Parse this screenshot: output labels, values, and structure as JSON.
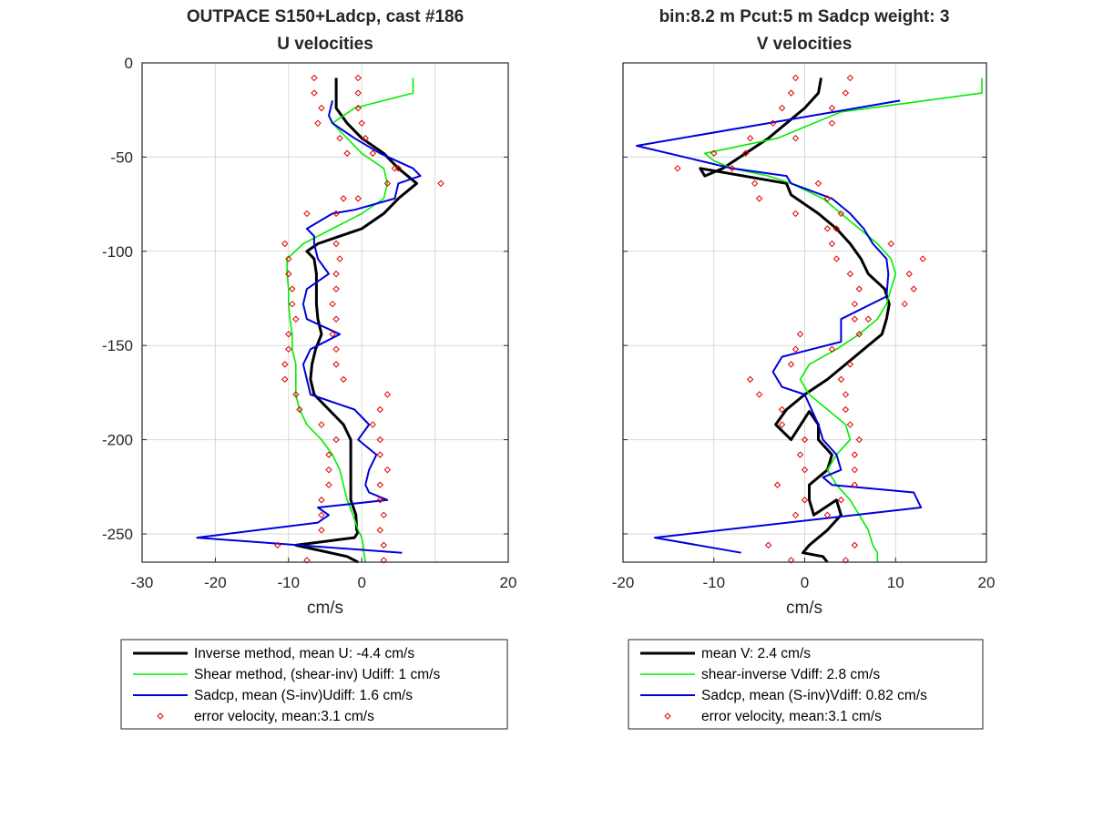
{
  "colors": {
    "inverse": "#000000",
    "shear": "#00ee00",
    "sadcp": "#0000dd",
    "error": "#dd0000",
    "grid": "#d9d9d9",
    "axis": "#262626"
  },
  "chart_data": [
    {
      "type": "line",
      "panel": "left",
      "title_line1": "OUTPACE S150+Ladcp, cast #186",
      "title_line2": "U velocities",
      "xlabel": "cm/s",
      "ylabel": "",
      "xlim": [
        -30,
        20
      ],
      "ylim": [
        -265,
        0
      ],
      "xticks": [
        -30,
        -20,
        -10,
        0,
        20
      ],
      "xticklabels": [
        "-30",
        "-20",
        "-10",
        "0",
        "20"
      ],
      "xgrid": [
        -30,
        -20,
        -10,
        0,
        10,
        20
      ],
      "yticks": [
        0,
        -50,
        -100,
        -150,
        -200,
        -250
      ],
      "yticklabels": [
        "0",
        "-50",
        "-100",
        "-150",
        "-200",
        "-250"
      ],
      "grid": true,
      "legend_position": "below",
      "series": [
        {
          "name": "Inverse method, mean U:  -4.4 cm/s",
          "key": "inverse",
          "style": "line",
          "x": [
            -3.5,
            -3.5,
            -3.5,
            -2,
            0,
            3,
            5,
            7.5,
            5,
            3,
            0,
            -3,
            -6,
            -7.5,
            -6.5,
            -6.2,
            -6.2,
            -6.2,
            -6.0,
            -5.5,
            -6.3,
            -6.8,
            -7.0,
            -6.5,
            -4.5,
            -2.5,
            -1.5,
            -1.5,
            -1.5,
            -1.5,
            -1.5,
            -0.8,
            -0.7,
            -0.5,
            -1.0,
            -9.0,
            -2.0,
            -0.5
          ],
          "y": [
            -8,
            -16,
            -24,
            -32,
            -40,
            -48,
            -56,
            -64,
            -72,
            -80,
            -88,
            -92,
            -96,
            -100,
            -104,
            -112,
            -120,
            -128,
            -136,
            -144,
            -152,
            -160,
            -168,
            -176,
            -184,
            -192,
            -200,
            -208,
            -216,
            -224,
            -232,
            -240,
            -248,
            -249,
            -252,
            -256,
            -262,
            -265
          ]
        },
        {
          "name": "Shear method, (shear-inv)  Udiff:  1 cm/s",
          "key": "shear",
          "style": "line",
          "x": [
            7.0,
            7.0,
            -1,
            -4,
            -2,
            0,
            3,
            3.5,
            3,
            0,
            -4,
            -8,
            -10.2,
            -10.2,
            -10.0,
            -10.0,
            -9.8,
            -9.5,
            -9.5,
            -9.0,
            -9.0,
            -9.0,
            -8.5,
            -7.5,
            -5.5,
            -4,
            -3,
            -2.5,
            -2,
            -1.2,
            -0.5,
            0,
            0.2,
            0.3,
            0.5
          ],
          "y": [
            -8,
            -16,
            -24,
            -32,
            -40,
            -48,
            -56,
            -64,
            -72,
            -80,
            -88,
            -96,
            -104,
            -112,
            -120,
            -128,
            -136,
            -144,
            -152,
            -160,
            -168,
            -176,
            -184,
            -192,
            -200,
            -208,
            -216,
            -224,
            -232,
            -240,
            -248,
            -252,
            -256,
            -260,
            -265
          ]
        },
        {
          "name": "Sadcp, mean (S-inv)Udiff: 1.6 cm/s",
          "key": "sadcp",
          "style": "line",
          "x": [
            -4,
            -4.5,
            -4,
            -1,
            2.5,
            7,
            8,
            5,
            4.5,
            -1,
            -4.0,
            -7.5,
            -6.5,
            -6.5,
            -6.0,
            -4.5,
            -7.5,
            -8.0,
            -7.5,
            -3.0,
            -7.0,
            -8.0,
            -7.5,
            -7.0,
            -1.0,
            1.0,
            -0.5,
            2.0,
            1.0,
            0.5,
            1.0,
            3.5,
            -6.0,
            -4.5,
            -6.0,
            -22.5,
            5.5
          ],
          "y": [
            -20,
            -28,
            -32,
            -40,
            -48,
            -56,
            -60,
            -64,
            -72,
            -78,
            -80,
            -88,
            -92,
            -96,
            -104,
            -112,
            -120,
            -128,
            -136,
            -144,
            -152,
            -160,
            -168,
            -176,
            -184,
            -192,
            -200,
            -208,
            -216,
            -224,
            -228,
            -232,
            -236,
            -240,
            -244,
            -252,
            -260
          ]
        },
        {
          "name": "error velocity, mean:3.1 cm/s",
          "key": "error",
          "style": "markers",
          "x": [
            -6.5,
            -0.5,
            -6.5,
            -0.5,
            -5.5,
            -0.5,
            -6.0,
            0,
            -3.0,
            0.5,
            -2.0,
            1.5,
            5.0,
            4.5,
            10.8,
            3.5,
            -0.5,
            -2.5,
            -3.5,
            -7.5,
            -10.5,
            -3.5,
            -10.0,
            -3.0,
            -10.0,
            -3.5,
            -9.5,
            -3.5,
            -9.5,
            -4.0,
            -9.0,
            -3.5,
            -10.0,
            -4.0,
            -10.0,
            -3.5,
            -10.5,
            -3.5,
            -10.5,
            -2.5,
            -9.0,
            3.5,
            -8.5,
            2.5,
            -5.5,
            1.5,
            -3.5,
            2.5,
            -4.5,
            2.5,
            -4.5,
            3.5,
            -4.5,
            2.5,
            -5.5,
            2.5,
            -5.5,
            3.0,
            -5.5,
            2.5,
            -11.5,
            3.0,
            -7.5,
            3.0
          ],
          "y": [
            -8,
            -8,
            -16,
            -16,
            -24,
            -24,
            -32,
            -32,
            -40,
            -40,
            -48,
            -48,
            -56,
            -56,
            -64,
            -64,
            -72,
            -72,
            -80,
            -80,
            -96,
            -96,
            -104,
            -104,
            -112,
            -112,
            -120,
            -120,
            -128,
            -128,
            -136,
            -136,
            -144,
            -144,
            -152,
            -152,
            -160,
            -160,
            -168,
            -168,
            -176,
            -176,
            -184,
            -184,
            -192,
            -192,
            -200,
            -200,
            -208,
            -208,
            -216,
            -216,
            -224,
            -224,
            -232,
            -232,
            -240,
            -240,
            -248,
            -248,
            -256,
            -256,
            -264,
            -264
          ]
        }
      ]
    },
    {
      "type": "line",
      "panel": "right",
      "title_line1": "bin:8.2 m  Pcut:5 m  Sadcp weight: 3",
      "title_line2": "V velocities",
      "xlabel": "cm/s",
      "ylabel": "",
      "xlim": [
        -20,
        20
      ],
      "ylim": [
        -265,
        0
      ],
      "xticks": [
        -20,
        -10,
        0,
        10,
        20
      ],
      "xticklabels": [
        "-20",
        "-10",
        "0",
        "10",
        "20"
      ],
      "xgrid": [
        -20,
        -10,
        0,
        10,
        20
      ],
      "yticks": [
        0,
        -50,
        -100,
        -150,
        -200,
        -250
      ],
      "yticklabels": [
        "",
        "",
        "",
        "",
        "",
        ""
      ],
      "grid": true,
      "legend_position": "below",
      "series": [
        {
          "name": "mean V:  2.4 cm/s",
          "key": "inverse",
          "style": "line",
          "x": [
            1.8,
            1.5,
            0,
            -2,
            -4,
            -6.5,
            -9,
            -11,
            -11.5,
            -2,
            -1.5,
            1.5,
            3.5,
            5,
            6.2,
            7.0,
            8.8,
            9.3,
            9.0,
            8.5,
            6.5,
            4.5,
            2.5,
            0,
            -2.0,
            -3.2,
            -1.5,
            0.5,
            1.5,
            1.5,
            3.0,
            2.5,
            0.5,
            0.5,
            1.0,
            3.5,
            4.0,
            2.5,
            0.5,
            -0.2,
            2.0,
            2.5
          ],
          "y": [
            -8,
            -16,
            -24,
            -32,
            -40,
            -48,
            -56,
            -60,
            -56,
            -64,
            -70,
            -80,
            -88,
            -96,
            -104,
            -112,
            -120,
            -128,
            -136,
            -144,
            -152,
            -160,
            -168,
            -176,
            -184,
            -192,
            -200,
            -185,
            -192,
            -200,
            -208,
            -216,
            -224,
            -232,
            -240,
            -232,
            -240,
            -248,
            -256,
            -260,
            -262,
            -265
          ]
        },
        {
          "name": "shear-inverse Vdiff:  2.8 cm/s",
          "key": "shear",
          "style": "line",
          "x": [
            19.5,
            19.5,
            4,
            -3,
            -11,
            -10,
            -8,
            -4,
            -1.5,
            2,
            4,
            6,
            8,
            9.5,
            10,
            9.5,
            9,
            8,
            6,
            3.5,
            0.5,
            -0.5,
            0.5,
            2.5,
            4.5,
            5.0,
            3.5,
            2.5,
            3.5,
            5.0,
            6.0,
            7.0,
            7.5,
            8.0,
            8.0
          ],
          "y": [
            -8,
            -16,
            -26,
            -40,
            -48,
            -52,
            -56,
            -60,
            -64,
            -72,
            -80,
            -88,
            -96,
            -104,
            -112,
            -120,
            -128,
            -136,
            -144,
            -152,
            -160,
            -168,
            -176,
            -184,
            -192,
            -200,
            -208,
            -216,
            -224,
            -232,
            -240,
            -248,
            -256,
            -260,
            -265
          ]
        },
        {
          "name": "Sadcp, mean (S-inv)Vdiff: 0.82 cm/s",
          "key": "sadcp",
          "style": "line",
          "x": [
            10.5,
            -18.5,
            -8,
            -2,
            -1.5,
            3,
            5,
            6.5,
            7.5,
            9.0,
            9.2,
            9.0,
            4.0,
            4.0,
            -2.5,
            -3.5,
            -2.5,
            0.0,
            1.5,
            2.0,
            3.5,
            4.0,
            2.0,
            3.0,
            12.0,
            12.8,
            -16.5,
            -7.0
          ],
          "y": [
            -20,
            -44,
            -56,
            -60,
            -64,
            -72,
            -80,
            -88,
            -96,
            -104,
            -112,
            -124,
            -136,
            -148,
            -156,
            -164,
            -172,
            -176,
            -192,
            -200,
            -208,
            -216,
            -220,
            -224,
            -228,
            -236,
            -252,
            -260
          ]
        },
        {
          "name": "error velocity, mean:3.1 cm/s",
          "key": "error",
          "style": "markers",
          "x": [
            -1,
            5,
            -1.5,
            4.5,
            -2.5,
            3.0,
            -3.5,
            3.0,
            -6.0,
            -1.0,
            -10.0,
            -6.5,
            -14.0,
            -8.0,
            -5.5,
            1.5,
            -5.0,
            2.5,
            -1.0,
            4.0,
            3.5,
            2.5,
            9.5,
            3.0,
            3.5,
            13.0,
            5.0,
            11.5,
            6.0,
            12.0,
            5.5,
            11.0,
            5.5,
            7.0,
            -0.5,
            6.0,
            -1.0,
            3.0,
            -1.5,
            5.0,
            -6.0,
            4.0,
            -5.0,
            4.5,
            -2.5,
            4.5,
            -2.5,
            5.0,
            0,
            6.0,
            -0.5,
            5.5,
            0,
            5.5,
            -3.0,
            5.5,
            0,
            4.0,
            -1.0,
            2.5,
            -4.0,
            5.5,
            -1.5,
            4.5
          ],
          "y": [
            -8,
            -8,
            -16,
            -16,
            -24,
            -24,
            -32,
            -32,
            -40,
            -40,
            -48,
            -48,
            -56,
            -56,
            -64,
            -64,
            -72,
            -72,
            -80,
            -80,
            -88,
            -88,
            -96,
            -96,
            -104,
            -104,
            -112,
            -112,
            -120,
            -120,
            -128,
            -128,
            -136,
            -136,
            -144,
            -144,
            -152,
            -152,
            -160,
            -160,
            -168,
            -168,
            -176,
            -176,
            -184,
            -184,
            -192,
            -192,
            -200,
            -200,
            -208,
            -208,
            -216,
            -216,
            -224,
            -224,
            -232,
            -232,
            -240,
            -240,
            -256,
            -256,
            -264,
            -264
          ]
        }
      ]
    }
  ]
}
